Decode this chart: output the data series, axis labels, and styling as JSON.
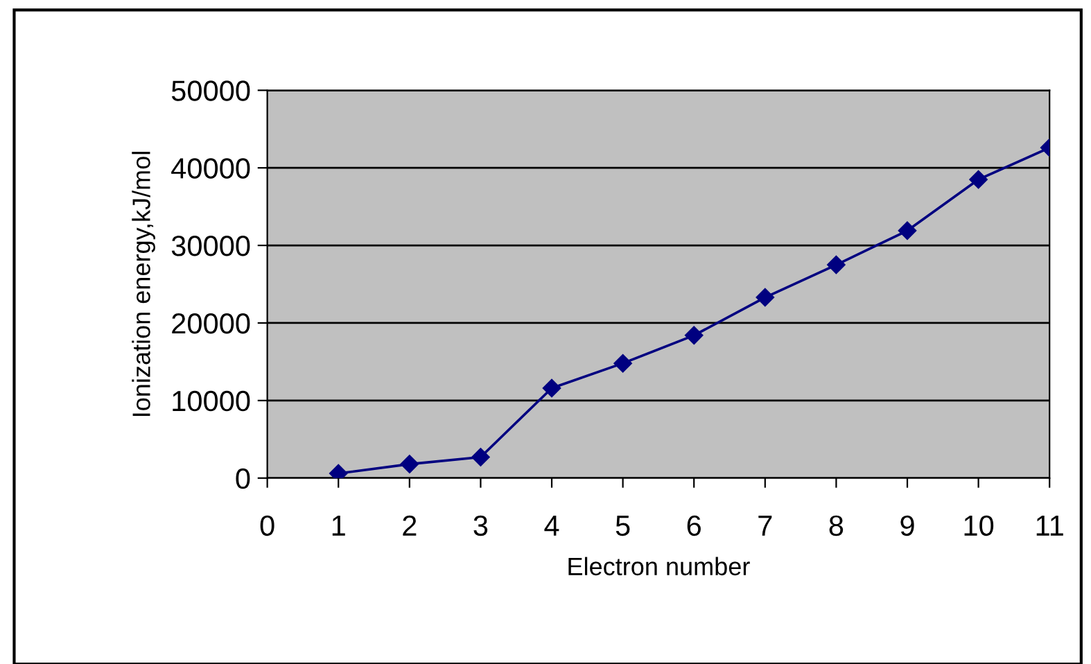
{
  "chart_data": {
    "type": "line",
    "xlabel": "Electron number",
    "ylabel": "Ionization energy,kJ/mol",
    "x": [
      1,
      2,
      3,
      4,
      5,
      6,
      7,
      8,
      9,
      10,
      11
    ],
    "series": [
      {
        "color": "#000080",
        "values": [
          600,
          1800,
          2700,
          11600,
          14800,
          18400,
          23300,
          27500,
          31900,
          38500,
          42600
        ]
      }
    ],
    "xlim": [
      0,
      11
    ],
    "xticks": [
      0,
      1,
      2,
      3,
      4,
      5,
      6,
      7,
      8,
      9,
      10,
      11
    ],
    "ylim": [
      0,
      50000
    ],
    "yticks": [
      0,
      10000,
      20000,
      30000,
      40000,
      50000
    ],
    "grid": "y",
    "marker": "diamond",
    "line_style": "solid"
  }
}
